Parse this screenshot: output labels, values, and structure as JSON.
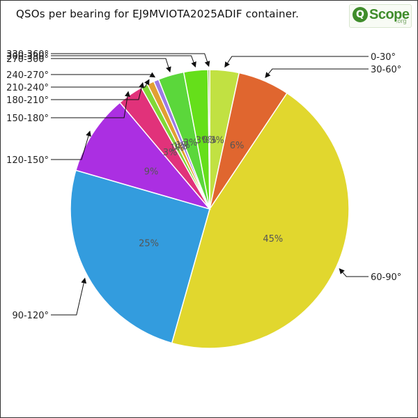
{
  "chart_data": {
    "type": "pie",
    "title": "QSOs per bearing for EJ9MVIOTA2025ADIF container.",
    "categories": [
      "0-30°",
      "30-60°",
      "60-90°",
      "90-120°",
      "120-150°",
      "150-180°",
      "180-210°",
      "210-240°",
      "240-270°",
      "270-300°",
      "300-330°",
      "330-360°"
    ],
    "values": [
      3.4,
      6.0,
      45.2,
      25.2,
      9.4,
      3.0,
      0.8,
      0.8,
      0.6,
      3.0,
      2.8,
      0.2
    ],
    "data_labels": [
      "3%",
      "6%",
      "45%",
      "25%",
      "9%",
      "3%",
      "1%",
      "1%",
      "1%",
      "3%",
      "3%",
      "0%"
    ],
    "colors": [
      "#c1e142",
      "#e0662f",
      "#e1d72e",
      "#339cde",
      "#ab2fe2",
      "#e1327a",
      "#81d836",
      "#e2a032",
      "#9d7ae5",
      "#5bd73b",
      "#65df1a",
      "#7aa53a"
    ],
    "legend": "none"
  },
  "logo": {
    "mark": "Q",
    "name": "Scope",
    "tld": ".org"
  }
}
